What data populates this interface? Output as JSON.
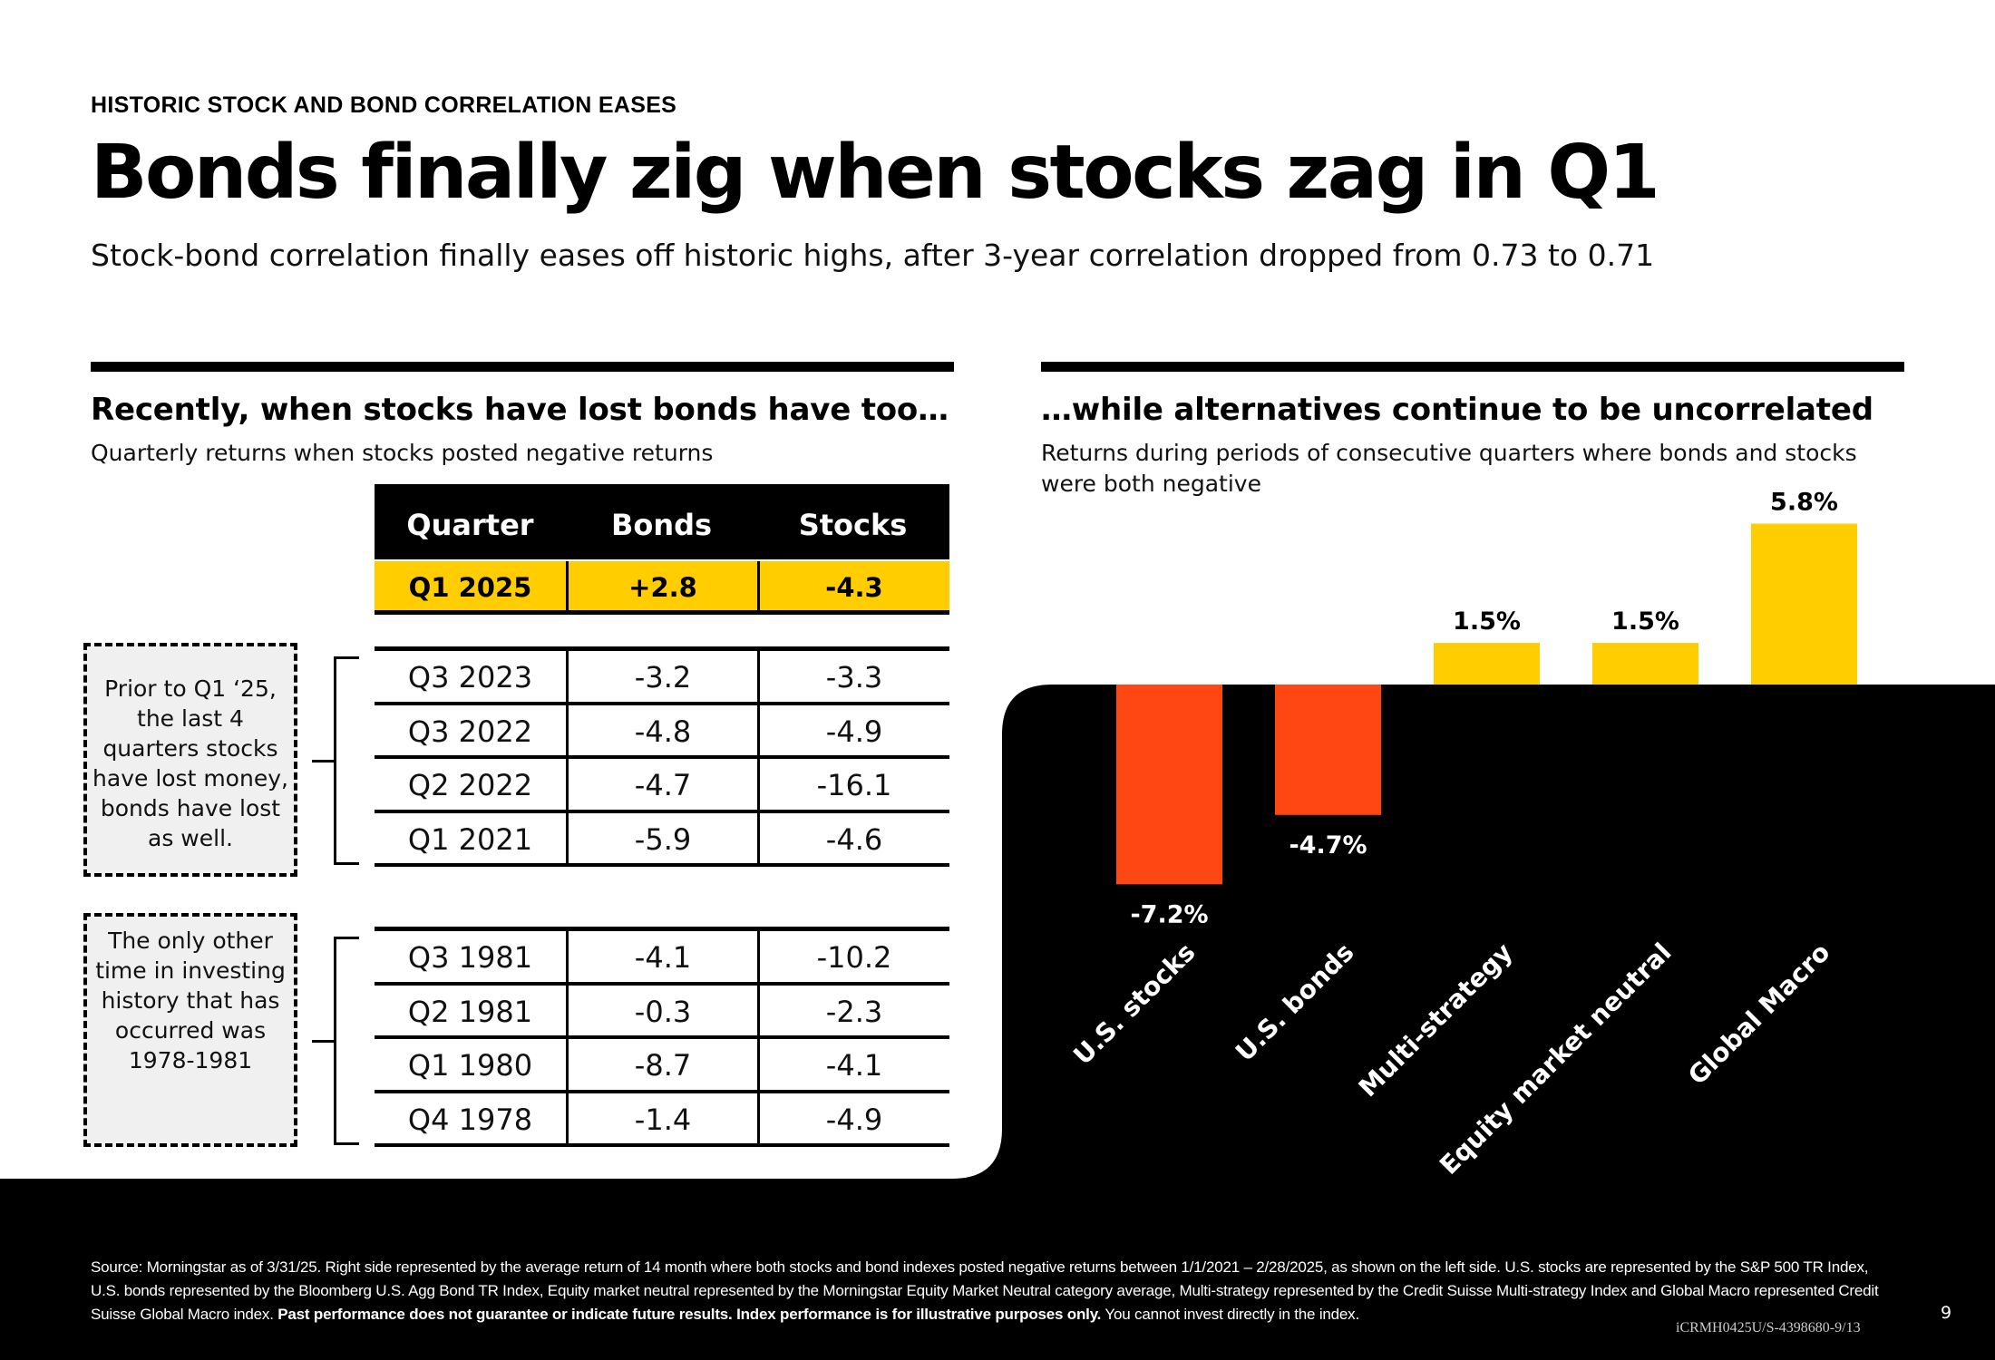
{
  "eyebrow": "HISTORIC STOCK AND BOND CORRELATION EASES",
  "headline": "Bonds finally zig when stocks zag in Q1",
  "subhead": "Stock-bond correlation finally eases off historic highs, after 3-year correlation dropped from 0.73 to 0.71",
  "left": {
    "title": "Recently, when stocks have lost bonds have too…",
    "subtitle": "Quarterly returns when stocks posted negative returns",
    "table": {
      "headers": [
        "Quarter",
        "Bonds",
        "Stocks"
      ],
      "highlight_row": [
        "Q1 2025",
        "+2.8",
        "-4.3"
      ],
      "recent_rows": [
        [
          "Q3 2023",
          "-3.2",
          "-3.3"
        ],
        [
          "Q3 2022",
          "-4.8",
          "-4.9"
        ],
        [
          "Q2 2022",
          "-4.7",
          "-16.1"
        ],
        [
          "Q1 2021",
          "-5.9",
          "-4.6"
        ]
      ],
      "historic_rows": [
        [
          "Q3 1981",
          "-4.1",
          "-10.2"
        ],
        [
          "Q2 1981",
          "-0.3",
          "-2.3"
        ],
        [
          "Q1 1980",
          "-8.7",
          "-4.1"
        ],
        [
          "Q4 1978",
          "-1.4",
          "-4.9"
        ]
      ]
    },
    "note1": "Prior to Q1 ‘25, the last 4 quarters stocks have lost money, bonds have lost as well.",
    "note2": "The only other time in investing history that has occurred was 1978-1981"
  },
  "right": {
    "title": "…while alternatives continue to be uncorrelated",
    "subtitle": "Returns during periods of consecutive quarters where bonds and stocks were both negative"
  },
  "chart_data": {
    "type": "bar",
    "categories": [
      "U.S. stocks",
      "U.S. bonds",
      "Multi-strategy",
      "Equity market neutral",
      "Global Macro"
    ],
    "values": [
      -7.2,
      -4.7,
      1.5,
      1.5,
      5.8
    ],
    "data_labels": [
      "-7.2%",
      "-4.7%",
      "1.5%",
      "1.5%",
      "5.8%"
    ],
    "unit": "%",
    "colors": {
      "negative": "#ff4713",
      "positive": "#ffcd00",
      "background": "#000000"
    },
    "ylim": [
      -7.2,
      5.8
    ],
    "grid": false,
    "legend": "none"
  },
  "footer": {
    "source": "Source:  Morningstar as of 3/31/25. Right side represented by the average return of 14 month where both stocks and bond indexes posted negative returns between 1/1/2021 – 2/28/2025, as shown on the left side. U.S. stocks are represented by the S&P 500 TR Index, U.S. bonds represented by the Bloomberg U.S. Agg Bond TR Index, Equity market neutral represented by the Morningstar Equity Market Neutral category average, Multi-strategy represented by the Credit Suisse Multi-strategy Index and Global Macro represented Credit Suisse Global Macro index. ",
    "disclaimer": "Past performance does not guarantee or indicate future results. Index performance is for illustrative purposes only.",
    "tail": " You cannot invest directly in the index.",
    "page_number": "9",
    "doc_code": "iCRMH0425U/S-4398680-9/13"
  }
}
